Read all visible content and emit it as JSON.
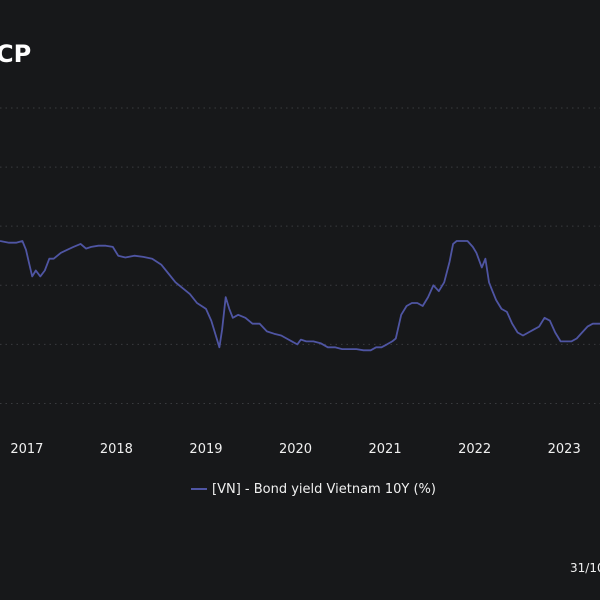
{
  "chart_data": {
    "type": "line",
    "title": "CP",
    "xlabel": "",
    "ylabel": "",
    "x_ticks": [
      "2017",
      "2018",
      "2019",
      "2020",
      "2021",
      "2022",
      "2023"
    ],
    "xlim": [
      2016.7,
      2023.4
    ],
    "ylim": [
      0,
      5.5
    ],
    "grid_y": [
      0.5,
      1.5,
      2.5,
      3.5,
      4.5,
      5.5
    ],
    "series": [
      {
        "name": "[VN] - Bond yield Vietnam 10Y (%)",
        "color": "#4f55a3",
        "x": [
          2016.7,
          2016.8,
          2016.88,
          2016.95,
          2016.99,
          2017.02,
          2017.06,
          2017.1,
          2017.15,
          2017.2,
          2017.25,
          2017.3,
          2017.38,
          2017.45,
          2017.52,
          2017.6,
          2017.66,
          2017.72,
          2017.8,
          2017.88,
          2017.96,
          2018.02,
          2018.1,
          2018.2,
          2018.3,
          2018.4,
          2018.5,
          2018.58,
          2018.66,
          2018.74,
          2018.82,
          2018.9,
          2019.0,
          2019.06,
          2019.12,
          2019.15,
          2019.18,
          2019.22,
          2019.26,
          2019.3,
          2019.36,
          2019.44,
          2019.52,
          2019.6,
          2019.68,
          2019.76,
          2019.84,
          2019.9,
          2019.96,
          2020.02,
          2020.06,
          2020.12,
          2020.2,
          2020.28,
          2020.36,
          2020.44,
          2020.52,
          2020.6,
          2020.68,
          2020.76,
          2020.84,
          2020.9,
          2020.96,
          2021.02,
          2021.08,
          2021.12,
          2021.18,
          2021.24,
          2021.3,
          2021.36,
          2021.42,
          2021.48,
          2021.54,
          2021.6,
          2021.66,
          2021.72,
          2021.76,
          2021.8,
          2021.86,
          2021.92,
          2021.98,
          2022.02,
          2022.08,
          2022.12,
          2022.16,
          2022.2,
          2022.24,
          2022.3,
          2022.36,
          2022.42,
          2022.48,
          2022.54,
          2022.6,
          2022.66,
          2022.72,
          2022.78,
          2022.84,
          2022.9,
          2022.96,
          2023.02,
          2023.08,
          2023.14,
          2023.2,
          2023.26,
          2023.32,
          2023.4
        ],
        "values": [
          3.25,
          3.22,
          3.22,
          3.25,
          3.1,
          2.9,
          2.65,
          2.75,
          2.65,
          2.75,
          2.95,
          2.95,
          3.05,
          3.1,
          3.15,
          3.2,
          3.12,
          3.15,
          3.17,
          3.17,
          3.15,
          3.0,
          2.97,
          3.0,
          2.98,
          2.95,
          2.85,
          2.7,
          2.55,
          2.45,
          2.35,
          2.2,
          2.1,
          1.9,
          1.6,
          1.45,
          1.75,
          2.3,
          2.1,
          1.95,
          2.0,
          1.95,
          1.85,
          1.85,
          1.72,
          1.68,
          1.65,
          1.6,
          1.55,
          1.5,
          1.58,
          1.55,
          1.55,
          1.52,
          1.45,
          1.45,
          1.42,
          1.42,
          1.42,
          1.4,
          1.4,
          1.45,
          1.45,
          1.5,
          1.55,
          1.6,
          2.0,
          2.15,
          2.2,
          2.2,
          2.15,
          2.3,
          2.5,
          2.4,
          2.55,
          2.9,
          3.2,
          3.25,
          3.25,
          3.25,
          3.15,
          3.05,
          2.8,
          2.95,
          2.55,
          2.4,
          2.25,
          2.1,
          2.05,
          1.85,
          1.7,
          1.65,
          1.7,
          1.75,
          1.8,
          1.95,
          1.9,
          1.7,
          1.55,
          1.55,
          1.55,
          1.6,
          1.7,
          1.8,
          1.85,
          1.85
        ]
      }
    ],
    "legend_position": "bottom-center"
  },
  "footer": {
    "date_label": "31/10"
  },
  "colors": {
    "background": "#17181a",
    "grid": "#3a3b3f",
    "text": "#f0f0f0",
    "line": "#4f55a3"
  }
}
